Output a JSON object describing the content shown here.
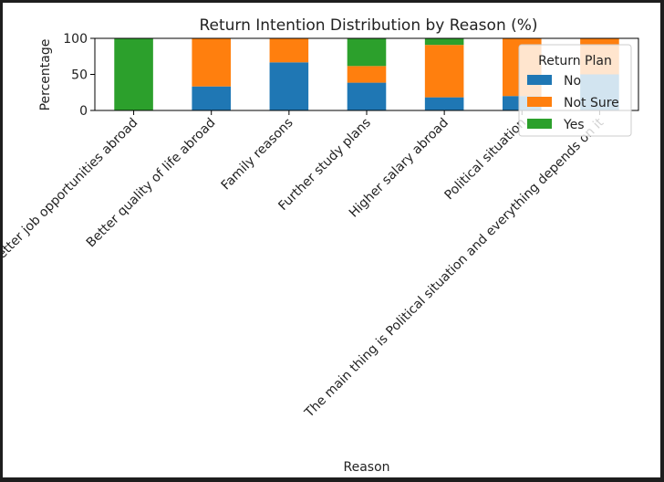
{
  "chart_data": {
    "type": "bar",
    "stacked": true,
    "title": "Return Intention Distribution by Reason (%)",
    "xlabel": "Reason",
    "ylabel": "Percentage",
    "ylim": [
      0,
      100
    ],
    "yticks": [
      0,
      50,
      100
    ],
    "grid": false,
    "legend": {
      "title": "Return Plan",
      "placement": "top-right"
    },
    "categories": [
      "Better job opportunities abroad",
      "Better quality of life abroad",
      "Family reasons",
      "Further study plans",
      "Higher salary abroad",
      "Political situation",
      "The main thing is Political situation and everything depends on it"
    ],
    "series": [
      {
        "name": "No",
        "color": "#1f77b4",
        "values": [
          0,
          33.3,
          66.7,
          38.5,
          18.2,
          20,
          50
        ]
      },
      {
        "name": "Not Sure",
        "color": "#ff7f0e",
        "values": [
          0,
          66.7,
          33.3,
          23.1,
          72.7,
          80,
          50
        ]
      },
      {
        "name": "Yes",
        "color": "#2ca02c",
        "values": [
          100,
          0,
          0,
          38.4,
          9.1,
          0,
          0
        ]
      }
    ]
  }
}
